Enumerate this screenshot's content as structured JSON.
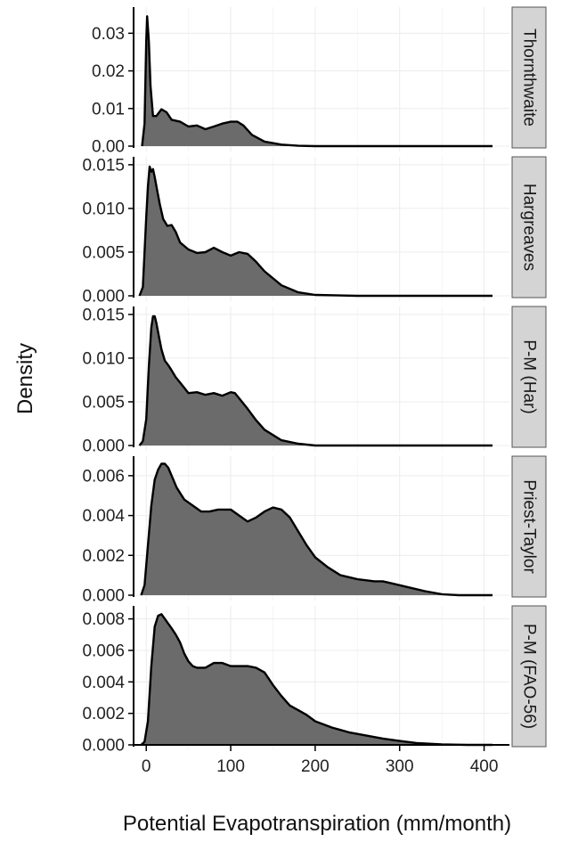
{
  "chart_data": {
    "type": "area",
    "xlabel": "Potential Evapotranspiration (mm/month)",
    "ylabel": "Density",
    "xlim": [
      -15,
      430
    ],
    "x_ticks": [
      0,
      100,
      200,
      300,
      400
    ],
    "x_tick_labels": [
      "0",
      "100",
      "200",
      "300",
      "400"
    ],
    "fill_color": "#6b6b6b",
    "strip_color": "#d4d4d4",
    "grid": true,
    "panels": [
      {
        "name": "Thornthwaite",
        "ylim": [
          0,
          0.036
        ],
        "y_ticks": [
          0,
          0.01,
          0.02,
          0.03
        ],
        "y_tick_labels": [
          "0.00",
          "0.01",
          "0.02",
          "0.03"
        ],
        "x": [
          -5,
          -2,
          0,
          1,
          3,
          5,
          8,
          12,
          18,
          24,
          30,
          40,
          50,
          60,
          70,
          80,
          90,
          100,
          108,
          115,
          125,
          140,
          160,
          180,
          200,
          250,
          300,
          350,
          410
        ],
        "y": [
          0,
          0.006,
          0.028,
          0.0345,
          0.028,
          0.016,
          0.008,
          0.008,
          0.0098,
          0.009,
          0.007,
          0.0065,
          0.0052,
          0.0055,
          0.0045,
          0.0052,
          0.006,
          0.0065,
          0.0065,
          0.0055,
          0.003,
          0.0012,
          0.0004,
          0.0001,
          0,
          0,
          0,
          0,
          0
        ]
      },
      {
        "name": "Hargreaves",
        "ylim": [
          0,
          0.0155
        ],
        "y_ticks": [
          0,
          0.005,
          0.01,
          0.015
        ],
        "y_tick_labels": [
          "0.000",
          "0.005",
          "0.010",
          "0.015"
        ],
        "x": [
          -8,
          -4,
          0,
          2,
          4,
          6,
          8,
          10,
          13,
          16,
          20,
          25,
          30,
          35,
          40,
          50,
          60,
          70,
          80,
          90,
          100,
          110,
          120,
          130,
          140,
          160,
          180,
          200,
          250,
          300,
          350,
          410
        ],
        "y": [
          0,
          0.001,
          0.009,
          0.0125,
          0.0148,
          0.0142,
          0.0145,
          0.0136,
          0.012,
          0.0105,
          0.0088,
          0.008,
          0.0081,
          0.0073,
          0.0061,
          0.0053,
          0.0049,
          0.005,
          0.0055,
          0.005,
          0.0046,
          0.005,
          0.0048,
          0.0039,
          0.0028,
          0.0012,
          0.0004,
          0.0001,
          0,
          0,
          0,
          0
        ]
      },
      {
        "name": "P-M (Har)",
        "ylim": [
          0,
          0.0155
        ],
        "y_ticks": [
          0,
          0.005,
          0.01,
          0.015
        ],
        "y_tick_labels": [
          "0.000",
          "0.005",
          "0.010",
          "0.015"
        ],
        "x": [
          -8,
          -4,
          0,
          3,
          6,
          8,
          10,
          12,
          15,
          18,
          22,
          26,
          30,
          35,
          40,
          45,
          50,
          60,
          70,
          80,
          90,
          100,
          105,
          110,
          120,
          130,
          140,
          160,
          180,
          200,
          250,
          300,
          350,
          410
        ],
        "y": [
          0,
          0.0005,
          0.003,
          0.009,
          0.0135,
          0.0148,
          0.0148,
          0.014,
          0.0125,
          0.011,
          0.0097,
          0.0092,
          0.0086,
          0.0078,
          0.0072,
          0.0066,
          0.006,
          0.0061,
          0.0058,
          0.006,
          0.0057,
          0.0061,
          0.006,
          0.0054,
          0.0042,
          0.0029,
          0.0018,
          0.0006,
          0.0002,
          0,
          0,
          0,
          0,
          0
        ]
      },
      {
        "name": "Priest-Taylor",
        "ylim": [
          0,
          0.0068
        ],
        "y_ticks": [
          0,
          0.002,
          0.004,
          0.006
        ],
        "y_tick_labels": [
          "0.000",
          "0.002",
          "0.004",
          "0.006"
        ],
        "x": [
          -6,
          -2,
          2,
          6,
          10,
          14,
          18,
          22,
          26,
          30,
          36,
          45,
          55,
          65,
          75,
          85,
          100,
          110,
          120,
          130,
          140,
          150,
          160,
          170,
          180,
          190,
          200,
          215,
          230,
          250,
          270,
          280,
          290,
          310,
          330,
          350,
          370,
          410
        ],
        "y": [
          0,
          0.0005,
          0.0025,
          0.0045,
          0.0058,
          0.0063,
          0.0066,
          0.0066,
          0.0064,
          0.006,
          0.0054,
          0.0048,
          0.0045,
          0.0042,
          0.0042,
          0.0043,
          0.0043,
          0.004,
          0.0037,
          0.0039,
          0.0042,
          0.0044,
          0.0043,
          0.0039,
          0.0032,
          0.0025,
          0.0019,
          0.0014,
          0.001,
          0.0008,
          0.0007,
          0.0007,
          0.0006,
          0.0004,
          0.0002,
          5e-05,
          0,
          0
        ]
      },
      {
        "name": "P-M (FAO-56)",
        "ylim": [
          0,
          0.0086
        ],
        "y_ticks": [
          0,
          0.002,
          0.004,
          0.006,
          0.008
        ],
        "y_tick_labels": [
          "0.000",
          "0.002",
          "0.004",
          "0.006",
          "0.008"
        ],
        "x": [
          -6,
          -2,
          2,
          6,
          10,
          14,
          18,
          22,
          26,
          30,
          35,
          40,
          45,
          50,
          55,
          60,
          70,
          80,
          90,
          100,
          110,
          120,
          130,
          140,
          150,
          160,
          170,
          180,
          190,
          200,
          220,
          240,
          260,
          280,
          300,
          320,
          350,
          380,
          410
        ],
        "y": [
          0,
          0.0002,
          0.0015,
          0.005,
          0.0075,
          0.0082,
          0.0083,
          0.008,
          0.0077,
          0.0074,
          0.007,
          0.0065,
          0.0058,
          0.0053,
          0.005,
          0.0049,
          0.0049,
          0.0052,
          0.0052,
          0.005,
          0.005,
          0.005,
          0.0049,
          0.0046,
          0.0038,
          0.0031,
          0.0025,
          0.0022,
          0.0019,
          0.0015,
          0.0011,
          0.0008,
          0.0006,
          0.0004,
          0.00025,
          0.00012,
          3e-05,
          0,
          0
        ]
      }
    ]
  }
}
